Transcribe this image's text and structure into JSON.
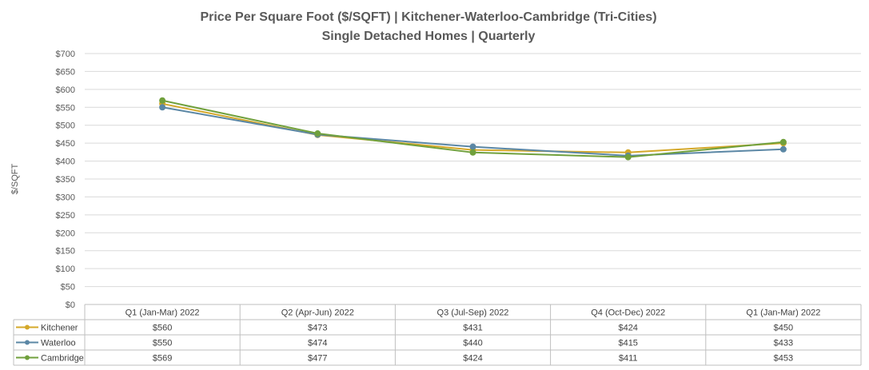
{
  "chart_data": {
    "type": "line",
    "title": "Price Per Square Foot ($/SQFT) | Kitchener-Waterloo-Cambridge (Tri-Cities)",
    "subtitle": "Single Detached Homes | Quarterly",
    "xlabel": "",
    "ylabel": "$/SQFT",
    "ylim": [
      0,
      700
    ],
    "ytick_step": 50,
    "ytick_labels": [
      "$0",
      "$50",
      "$100",
      "$150",
      "$200",
      "$250",
      "$300",
      "$350",
      "$400",
      "$450",
      "$500",
      "$550",
      "$600",
      "$650",
      "$700"
    ],
    "grid": true,
    "legend": "data-table",
    "categories": [
      "Q1 (Jan-Mar) 2022",
      "Q2 (Apr-Jun) 2022",
      "Q3 (Jul-Sep) 2022",
      "Q4 (Oct-Dec) 2022",
      "Q1 (Jan-Mar) 2022"
    ],
    "series": [
      {
        "name": "Kitchener",
        "color": "#d4a82a",
        "values": [
          560,
          473,
          431,
          424,
          450
        ],
        "labels": [
          "$560",
          "$473",
          "$431",
          "$424",
          "$450"
        ]
      },
      {
        "name": "Waterloo",
        "color": "#5b87a5",
        "values": [
          550,
          474,
          440,
          415,
          433
        ],
        "labels": [
          "$550",
          "$474",
          "$440",
          "$415",
          "$433"
        ]
      },
      {
        "name": "Cambridge",
        "color": "#70a03c",
        "values": [
          569,
          477,
          424,
          411,
          453
        ],
        "labels": [
          "$569",
          "$477",
          "$424",
          "$411",
          "$453"
        ]
      }
    ]
  }
}
